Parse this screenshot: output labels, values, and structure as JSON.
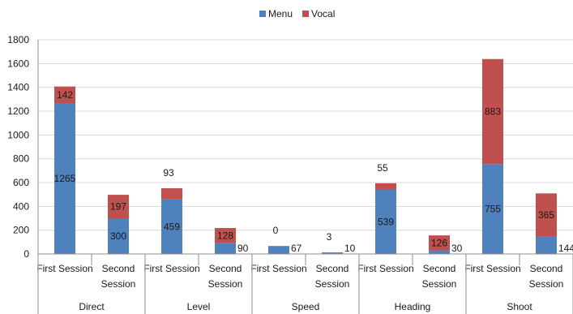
{
  "chart_data": {
    "type": "bar",
    "stacked": true,
    "groups": [
      "Direct",
      "Level",
      "Speed",
      "Heading",
      "Shoot"
    ],
    "categories": [
      [
        "First Session"
      ],
      [
        "Second",
        "Session"
      ],
      [
        "First Session"
      ],
      [
        "Second",
        "Session"
      ],
      [
        "First Session"
      ],
      [
        "Second",
        "Session"
      ],
      [
        "First Session"
      ],
      [
        "Second",
        "Session"
      ],
      [
        "First Session"
      ],
      [
        "Second",
        "Session"
      ]
    ],
    "series": [
      {
        "name": "Menu",
        "color": "#4F81BD",
        "values": [
          1265,
          300,
          459,
          90,
          67,
          10,
          539,
          30,
          755,
          144
        ]
      },
      {
        "name": "Vocal",
        "color": "#C0504D",
        "values": [
          142,
          197,
          93,
          128,
          0,
          3,
          55,
          126,
          883,
          365
        ]
      }
    ],
    "ylim": [
      0,
      1800
    ],
    "yticks": [
      "0",
      "200",
      "400",
      "600",
      "800",
      "1000",
      "1200",
      "1400",
      "1600",
      "1800"
    ],
    "legend_position": "top-center",
    "grid": true
  }
}
